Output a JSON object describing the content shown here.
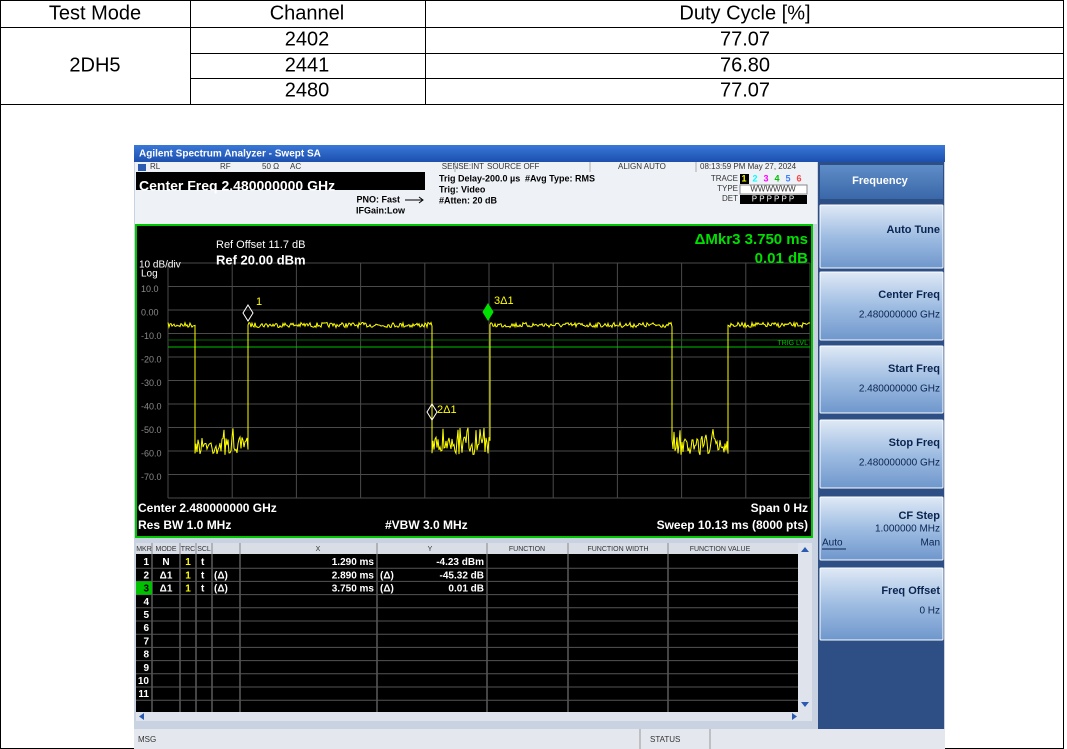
{
  "table": {
    "headers": [
      "Test Mode",
      "Channel",
      "Duty Cycle [%]"
    ],
    "test_mode": "2DH5",
    "rows": [
      {
        "channel": "2402",
        "duty_cycle": "77.07"
      },
      {
        "channel": "2441",
        "duty_cycle": "76.80"
      },
      {
        "channel": "2480",
        "duty_cycle": "77.07"
      }
    ]
  },
  "analyzer": {
    "window_title": "Agilent Spectrum Analyzer - Swept SA",
    "status_bar": {
      "ref_level": "RL",
      "input": "RF",
      "impedance": "50 Ω",
      "coupling": "AC",
      "sense": "SENSE:INT",
      "source": "SOURCE OFF",
      "align": "ALIGN AUTO",
      "datetime": "08:13:59 PM May 27, 2024"
    },
    "settings": {
      "center_freq": "Center Freq 2.480000000 GHz",
      "pno": "PNO: Fast",
      "ifgain": "IFGain:Low",
      "trig_delay": "Trig Delay-200.0 µs",
      "trig": "Trig: Video",
      "atten": "#Atten: 20 dB",
      "avg_type": "#Avg Type: RMS",
      "trace_label": "TRACE",
      "trace_numbers": [
        "1",
        "2",
        "3",
        "4",
        "5",
        "6"
      ],
      "type_label": "TYPE",
      "type_values": "WWWWWW",
      "det_label": "DET",
      "det_values": "P P P P P P"
    },
    "softkeys": {
      "menu": "Frequency",
      "keys": [
        {
          "label": "Auto Tune"
        },
        {
          "label": "Center Freq",
          "value": "2.480000000 GHz"
        },
        {
          "label": "Start Freq",
          "value": "2.480000000 GHz"
        },
        {
          "label": "Stop Freq",
          "value": "2.480000000 GHz"
        },
        {
          "label": "CF Step",
          "value": "1.000000 MHz",
          "options": [
            "Auto",
            "Man"
          ]
        },
        {
          "label": "Freq Offset",
          "value": "0 Hz"
        }
      ]
    },
    "plot": {
      "ref_offset": "Ref Offset 11.7 dB",
      "ref_level": "Ref 20.00 dBm",
      "scale": "10 dB/div",
      "scale_type": "Log",
      "marker_readout": "ΔMkr3 3.750 ms",
      "marker_value": "0.01 dB",
      "y_labels": [
        "10.0",
        "0.00",
        "-10.0",
        "-20.0",
        "-30.0",
        "-40.0",
        "-50.0",
        "-60.0",
        "-70.0"
      ],
      "marker_labels": [
        "1",
        "2Δ1",
        "3Δ1"
      ],
      "trig_level": "TRIG LVL",
      "center": "Center 2.480000000 GHz",
      "span": "Span 0 Hz",
      "res_bw": "Res BW 1.0 MHz",
      "vbw": "#VBW 3.0 MHz",
      "sweep": "Sweep  10.13 ms (8000 pts)"
    },
    "marker_table": {
      "headers": [
        "MKR",
        "MODE",
        "TRC",
        "SCL",
        "X",
        "Y",
        "FUNCTION",
        "FUNCTION WIDTH",
        "FUNCTION VALUE"
      ],
      "rows": [
        {
          "mkr": "1",
          "mode": "N",
          "trc": "1",
          "scl": "t",
          "x": "1.290 ms",
          "y": "-4.23 dBm"
        },
        {
          "mkr": "2",
          "mode": "Δ1",
          "trc": "1",
          "scl": "t",
          "ref": "(Δ)",
          "x": "2.890 ms",
          "y_ref": "(Δ)",
          "y": "-45.32 dB"
        },
        {
          "mkr": "3",
          "mode": "Δ1",
          "trc": "1",
          "scl": "t",
          "ref": "(Δ)",
          "x": "3.750 ms",
          "y_ref": "(Δ)",
          "y": "0.01 dB"
        }
      ],
      "empty_rows": [
        "4",
        "5",
        "6",
        "7",
        "8",
        "9",
        "10",
        "11"
      ]
    },
    "message_bar": {
      "msg": "MSG",
      "status": "STATUS"
    }
  }
}
